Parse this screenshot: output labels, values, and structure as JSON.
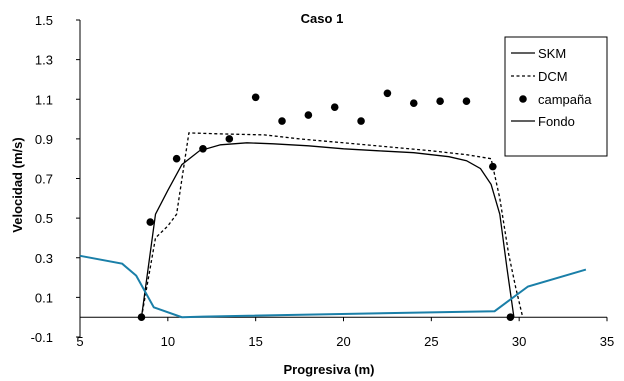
{
  "chart_data": {
    "type": "line",
    "title": "Caso 1",
    "xlabel": "Progresiva (m)",
    "ylabel": "Velocidad (m/s)",
    "xlim": [
      5,
      35
    ],
    "ylim": [
      -0.1,
      1.5
    ],
    "xticks": [
      5,
      10,
      15,
      20,
      25,
      30,
      35
    ],
    "xtick_labels": [
      "5",
      "10",
      "15",
      "20",
      "25",
      "30",
      "35"
    ],
    "yticks": [
      -0.1,
      0.1,
      0.3,
      0.5,
      0.7,
      0.9,
      1.1,
      1.3,
      1.5
    ],
    "ytick_labels": [
      "-0.1",
      "0.1",
      "0.3",
      "0.5",
      "0.7",
      "0.9",
      "1.1",
      "1.3",
      "1.5"
    ],
    "grid": false,
    "legend_position": "top-right",
    "series": [
      {
        "name": "SKM",
        "style": "solid",
        "color": "#000000",
        "x": [
          8.5,
          9.3,
          10.0,
          10.8,
          11.8,
          13.0,
          14.5,
          16.0,
          18.0,
          20.0,
          22.0,
          24.0,
          26.0,
          27.0,
          27.8,
          28.4,
          28.9,
          29.3,
          29.7
        ],
        "y": [
          0.0,
          0.52,
          0.64,
          0.77,
          0.84,
          0.87,
          0.88,
          0.875,
          0.865,
          0.85,
          0.84,
          0.83,
          0.81,
          0.79,
          0.75,
          0.67,
          0.52,
          0.25,
          0.0
        ]
      },
      {
        "name": "DCM",
        "style": "dashed",
        "color": "#000000",
        "x": [
          8.5,
          9.3,
          10.0,
          10.5,
          11.2,
          13.0,
          15.5,
          17.5,
          20.0,
          22.5,
          25.0,
          27.0,
          28.4,
          28.9,
          29.4,
          29.8,
          30.2
        ],
        "y": [
          0.0,
          0.4,
          0.46,
          0.52,
          0.93,
          0.925,
          0.92,
          0.9,
          0.88,
          0.86,
          0.84,
          0.82,
          0.8,
          0.6,
          0.32,
          0.15,
          0.0
        ]
      },
      {
        "name": "campaña",
        "style": "markers",
        "color": "#000000",
        "x": [
          8.5,
          9.0,
          10.5,
          12.0,
          13.5,
          15.0,
          16.5,
          18.0,
          19.5,
          21.0,
          22.5,
          24.0,
          25.5,
          27.0,
          28.5,
          29.5
        ],
        "y": [
          0.0,
          0.48,
          0.8,
          0.85,
          0.9,
          1.11,
          0.99,
          1.02,
          1.06,
          0.99,
          1.13,
          1.08,
          1.09,
          1.09,
          0.76,
          0.0
        ]
      },
      {
        "name": "Fondo",
        "style": "solid",
        "color": "#1a7fa8",
        "x": [
          5.0,
          7.4,
          8.2,
          9.2,
          10.8,
          12.0,
          28.6,
          30.5,
          33.8
        ],
        "y": [
          0.31,
          0.27,
          0.21,
          0.05,
          0.0,
          0.003,
          0.03,
          0.155,
          0.24
        ]
      }
    ]
  }
}
